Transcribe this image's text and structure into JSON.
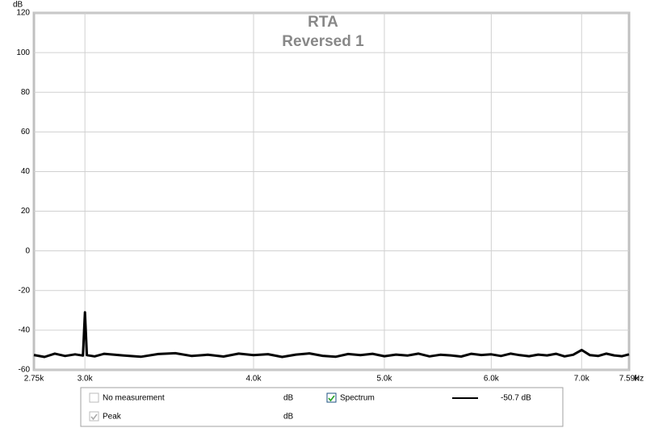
{
  "chart_data": {
    "type": "line",
    "title": "RTA",
    "subtitle": "Reversed 1",
    "y_label": "dB",
    "x_label": "Hz",
    "x_scale": "log",
    "grid": true,
    "xlim": [
      2750,
      7590
    ],
    "xticks": [
      {
        "value": 2750,
        "label": "2.75k"
      },
      {
        "value": 3000,
        "label": "3.0k"
      },
      {
        "value": 4000,
        "label": "4.0k"
      },
      {
        "value": 5000,
        "label": "5.0k"
      },
      {
        "value": 6000,
        "label": "6.0k"
      },
      {
        "value": 7000,
        "label": "7.0k"
      },
      {
        "value": 7590,
        "label": "7.59k"
      }
    ],
    "ylim": [
      -60,
      120
    ],
    "yticks": [
      -60,
      -40,
      -20,
      0,
      20,
      40,
      60,
      80,
      100,
      120
    ],
    "x": [
      2750,
      2800,
      2850,
      2900,
      2950,
      2990,
      3000,
      3010,
      3050,
      3100,
      3200,
      3300,
      3400,
      3500,
      3600,
      3700,
      3800,
      3900,
      4000,
      4100,
      4200,
      4300,
      4400,
      4500,
      4600,
      4700,
      4800,
      4900,
      5000,
      5100,
      5200,
      5300,
      5400,
      5500,
      5600,
      5700,
      5800,
      5900,
      6000,
      6100,
      6200,
      6300,
      6400,
      6500,
      6600,
      6700,
      6800,
      6900,
      7000,
      7100,
      7200,
      7300,
      7400,
      7500,
      7590
    ],
    "series": [
      {
        "name": "Spectrum",
        "color": "#000000",
        "values": [
          -52.5,
          -53.5,
          -51.8,
          -53,
          -52.2,
          -52.8,
          -31,
          -52.6,
          -53.2,
          -51.9,
          -52.7,
          -53.4,
          -52,
          -51.6,
          -53,
          -52.4,
          -53.3,
          -51.8,
          -52.6,
          -52.1,
          -53.5,
          -52.3,
          -51.7,
          -52.9,
          -53.4,
          -52,
          -52.6,
          -51.9,
          -53.1,
          -52.3,
          -52.8,
          -51.8,
          -53.2,
          -52.4,
          -52.7,
          -53.3,
          -51.9,
          -52.5,
          -52.2,
          -53,
          -51.8,
          -52.6,
          -53.1,
          -52.3,
          -52.7,
          -51.9,
          -53.2,
          -52.4,
          -50,
          -52.6,
          -53,
          -51.8,
          -52.7,
          -53.1,
          -52.2
        ]
      }
    ],
    "legend": [
      {
        "name": "No measurement",
        "unit": "dB",
        "checked": false,
        "enabled": false
      },
      {
        "name": "Spectrum",
        "value_label": "-50.7 dB",
        "checked": true,
        "enabled": true
      },
      {
        "name": "Peak",
        "unit": "dB",
        "checked": true,
        "enabled": false
      }
    ]
  }
}
